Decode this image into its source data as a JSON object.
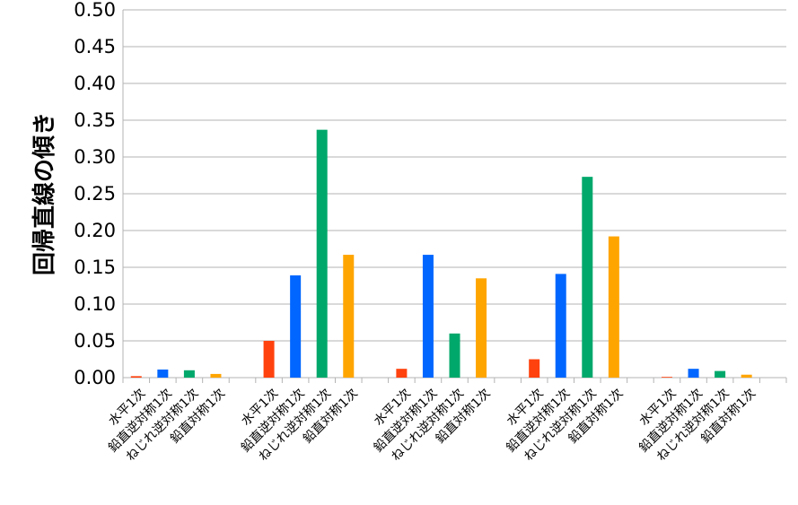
{
  "chart_data": {
    "type": "bar",
    "ylabel": "回帰直線の傾き",
    "ylim": [
      0,
      0.5
    ],
    "y_ticks": [
      "0.00",
      "0.05",
      "0.10",
      "0.15",
      "0.20",
      "0.25",
      "0.30",
      "0.35",
      "0.40",
      "0.45",
      "0.50"
    ],
    "grid": true,
    "legend": "none",
    "groups": [
      {
        "bars": [
          {
            "label": "水平1次",
            "value": 0.002,
            "color": "#ff420e"
          },
          {
            "label": "鉛直逆対称1次",
            "value": 0.011,
            "color": "#0066ff"
          },
          {
            "label": "ねじれ逆対称1次",
            "value": 0.01,
            "color": "#00a86b"
          },
          {
            "label": "鉛直対称1次",
            "value": 0.005,
            "color": "#ffa500"
          }
        ]
      },
      {
        "bars": [
          {
            "label": "水平1次",
            "value": 0.05,
            "color": "#ff420e"
          },
          {
            "label": "鉛直逆対称1次",
            "value": 0.139,
            "color": "#0066ff"
          },
          {
            "label": "ねじれ逆対称1次",
            "value": 0.337,
            "color": "#00a86b"
          },
          {
            "label": "鉛直対称1次",
            "value": 0.167,
            "color": "#ffa500"
          }
        ]
      },
      {
        "bars": [
          {
            "label": "水平1次",
            "value": 0.012,
            "color": "#ff420e"
          },
          {
            "label": "鉛直逆対称1次",
            "value": 0.167,
            "color": "#0066ff"
          },
          {
            "label": "ねじれ逆対称1次",
            "value": 0.06,
            "color": "#00a86b"
          },
          {
            "label": "鉛直対称1次",
            "value": 0.135,
            "color": "#ffa500"
          }
        ]
      },
      {
        "bars": [
          {
            "label": "水平1次",
            "value": 0.025,
            "color": "#ff420e"
          },
          {
            "label": "鉛直逆対称1次",
            "value": 0.141,
            "color": "#0066ff"
          },
          {
            "label": "ねじれ逆対称1次",
            "value": 0.273,
            "color": "#00a86b"
          },
          {
            "label": "鉛直対称1次",
            "value": 0.192,
            "color": "#ffa500"
          }
        ]
      },
      {
        "bars": [
          {
            "label": "水平1次",
            "value": 0.001,
            "color": "#ff420e"
          },
          {
            "label": "鉛直逆対称1次",
            "value": 0.012,
            "color": "#0066ff"
          },
          {
            "label": "ねじれ逆対称1次",
            "value": 0.009,
            "color": "#00a86b"
          },
          {
            "label": "鉛直対称1次",
            "value": 0.004,
            "color": "#ffa500"
          }
        ]
      }
    ]
  }
}
